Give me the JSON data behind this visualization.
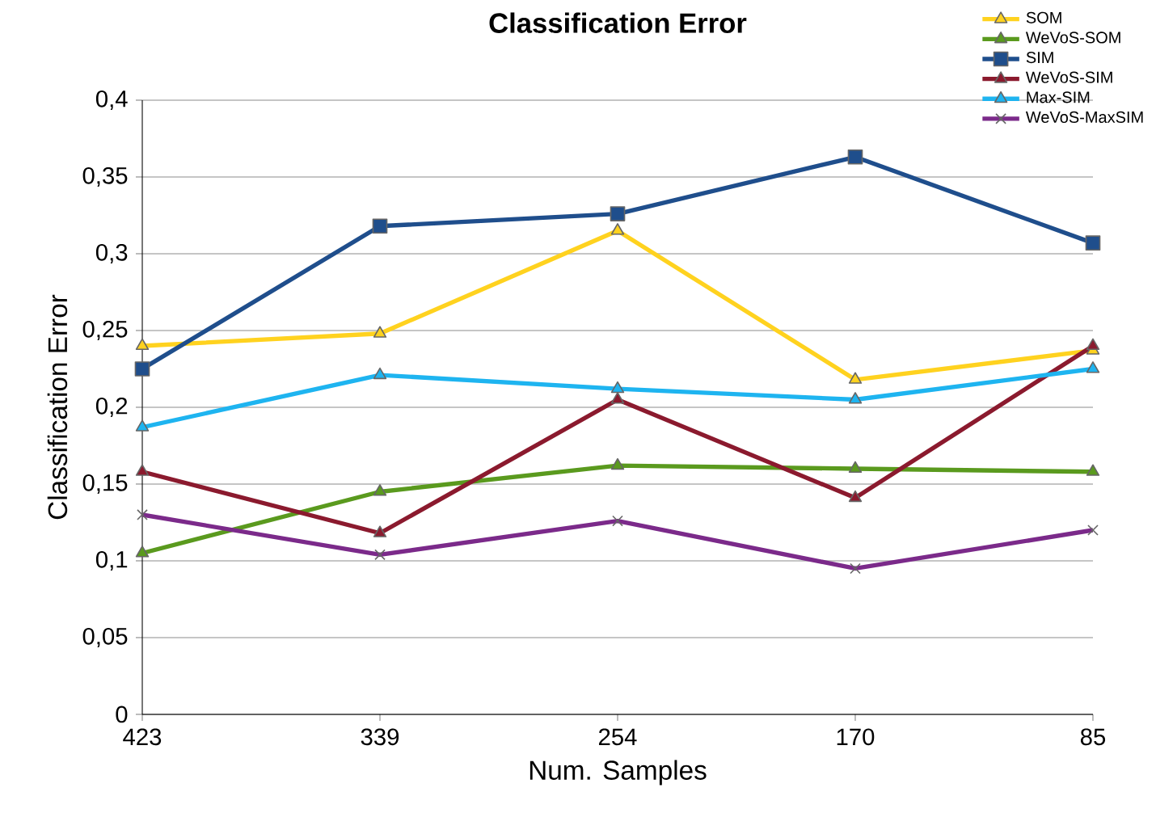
{
  "chart_data": {
    "type": "line",
    "title": "Classification Error",
    "xlabel": "Num. Samples",
    "ylabel": "Classification Error",
    "categories": [
      "423",
      "339",
      "254",
      "170",
      "85"
    ],
    "ylim": [
      0,
      0.4
    ],
    "yticks": [
      {
        "value": 0,
        "label": "0"
      },
      {
        "value": 0.05,
        "label": "0,05"
      },
      {
        "value": 0.1,
        "label": "0,1"
      },
      {
        "value": 0.15,
        "label": "0,15"
      },
      {
        "value": 0.2,
        "label": "0,2"
      },
      {
        "value": 0.25,
        "label": "0,25"
      },
      {
        "value": 0.3,
        "label": "0,3"
      },
      {
        "value": 0.35,
        "label": "0,35"
      },
      {
        "value": 0.4,
        "label": "0,4"
      }
    ],
    "grid": "y",
    "legend": "top right",
    "line_style": "solid",
    "series": [
      {
        "name": "SOM",
        "color": "#ffd21f",
        "marker": "triangle",
        "values": [
          0.24,
          0.248,
          0.315,
          0.218,
          0.237
        ]
      },
      {
        "name": "WeVoS-SOM",
        "color": "#5a9a1e",
        "marker": "triangle",
        "values": [
          0.105,
          0.145,
          0.162,
          0.16,
          0.158
        ]
      },
      {
        "name": "SIM",
        "color": "#1f4e8c",
        "marker": "square",
        "values": [
          0.225,
          0.318,
          0.326,
          0.363,
          0.307
        ]
      },
      {
        "name": "WeVoS-SIM",
        "color": "#8b1a2e",
        "marker": "triangle",
        "values": [
          0.158,
          0.118,
          0.205,
          0.141,
          0.24
        ]
      },
      {
        "name": "Max-SIM",
        "color": "#1eb4f0",
        "marker": "triangle",
        "values": [
          0.187,
          0.221,
          0.212,
          0.205,
          0.225
        ]
      },
      {
        "name": "WeVoS-MaxSIM",
        "color": "#7b2a8a",
        "marker": "cross",
        "values": [
          0.13,
          0.104,
          0.126,
          0.095,
          0.12
        ]
      }
    ]
  }
}
